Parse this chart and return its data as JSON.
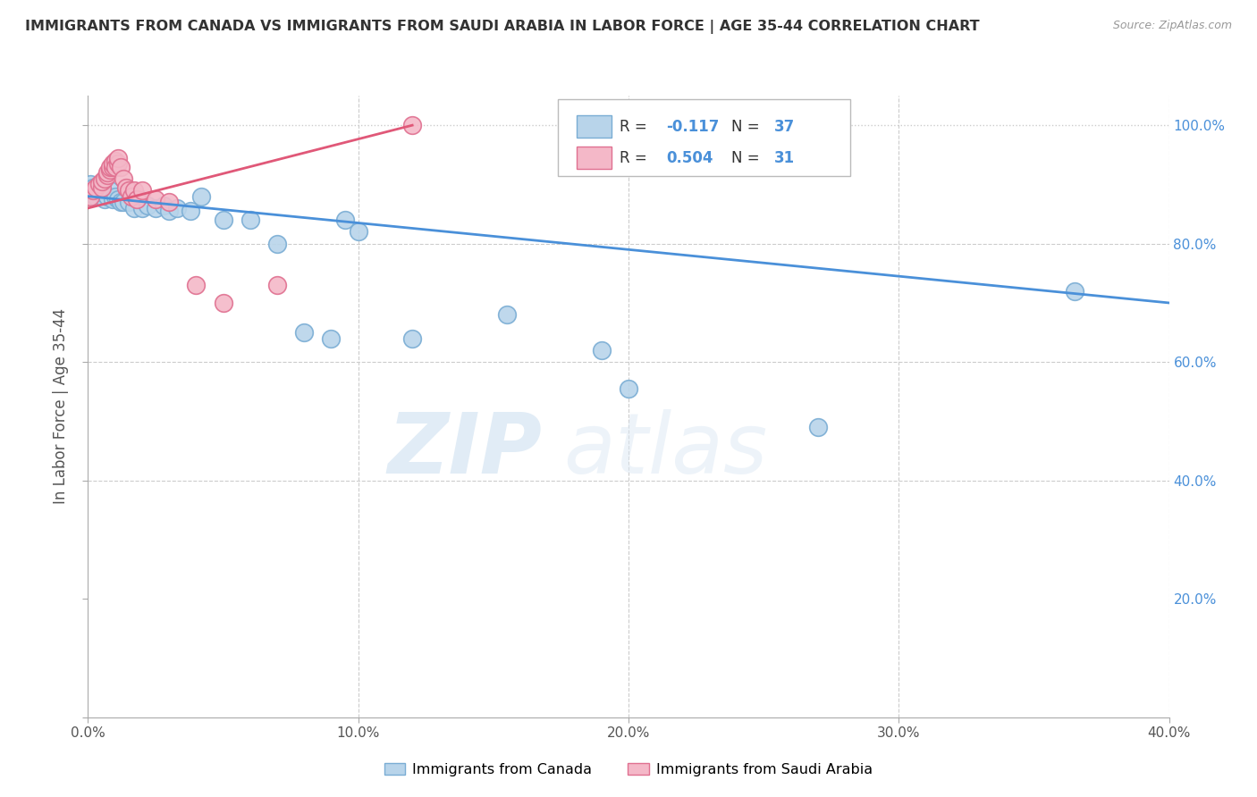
{
  "title": "IMMIGRANTS FROM CANADA VS IMMIGRANTS FROM SAUDI ARABIA IN LABOR FORCE | AGE 35-44 CORRELATION CHART",
  "source": "Source: ZipAtlas.com",
  "xlabel_canada": "Immigrants from Canada",
  "xlabel_saudi": "Immigrants from Saudi Arabia",
  "ylabel": "In Labor Force | Age 35-44",
  "xlim": [
    0.0,
    0.4
  ],
  "ylim": [
    0.0,
    1.05
  ],
  "xticks": [
    0.0,
    0.1,
    0.2,
    0.3,
    0.4
  ],
  "xtick_labels": [
    "0.0%",
    "10.0%",
    "20.0%",
    "30.0%",
    "40.0%"
  ],
  "yticks": [
    0.0,
    0.2,
    0.4,
    0.6,
    0.8,
    1.0
  ],
  "ytick_labels": [
    "",
    "20.0%",
    "40.0%",
    "60.0%",
    "80.0%",
    "100.0%"
  ],
  "canada_color": "#b8d4ea",
  "canada_edge": "#7aadd4",
  "saudi_color": "#f4b8c8",
  "saudi_edge": "#e07090",
  "trend_canada_color": "#4a90d9",
  "trend_saudi_color": "#e05878",
  "R_canada": -0.117,
  "N_canada": 37,
  "R_saudi": 0.504,
  "N_saudi": 31,
  "watermark_zip": "ZIP",
  "watermark_atlas": "atlas",
  "grid_color": "#cccccc",
  "bg_color": "#ffffff",
  "canada_x": [
    0.001,
    0.002,
    0.003,
    0.004,
    0.005,
    0.006,
    0.007,
    0.008,
    0.009,
    0.01,
    0.011,
    0.012,
    0.013,
    0.015,
    0.017,
    0.018,
    0.02,
    0.022,
    0.025,
    0.028,
    0.03,
    0.033,
    0.038,
    0.042,
    0.05,
    0.06,
    0.07,
    0.08,
    0.09,
    0.095,
    0.1,
    0.12,
    0.155,
    0.19,
    0.2,
    0.27,
    0.365
  ],
  "canada_y": [
    0.9,
    0.895,
    0.88,
    0.89,
    0.885,
    0.875,
    0.88,
    0.89,
    0.875,
    0.88,
    0.875,
    0.87,
    0.87,
    0.87,
    0.86,
    0.88,
    0.86,
    0.865,
    0.86,
    0.865,
    0.855,
    0.86,
    0.855,
    0.88,
    0.84,
    0.84,
    0.8,
    0.65,
    0.64,
    0.84,
    0.82,
    0.64,
    0.68,
    0.62,
    0.555,
    0.49,
    0.72
  ],
  "saudi_x": [
    0.001,
    0.002,
    0.003,
    0.004,
    0.005,
    0.005,
    0.006,
    0.007,
    0.007,
    0.008,
    0.008,
    0.009,
    0.009,
    0.01,
    0.01,
    0.011,
    0.011,
    0.012,
    0.013,
    0.014,
    0.015,
    0.016,
    0.017,
    0.018,
    0.02,
    0.025,
    0.03,
    0.04,
    0.05,
    0.07,
    0.12
  ],
  "saudi_y": [
    0.88,
    0.89,
    0.895,
    0.9,
    0.895,
    0.905,
    0.91,
    0.915,
    0.92,
    0.925,
    0.93,
    0.93,
    0.935,
    0.94,
    0.93,
    0.935,
    0.945,
    0.93,
    0.91,
    0.895,
    0.89,
    0.88,
    0.89,
    0.875,
    0.89,
    0.875,
    0.87,
    0.73,
    0.7,
    0.73,
    1.0
  ]
}
